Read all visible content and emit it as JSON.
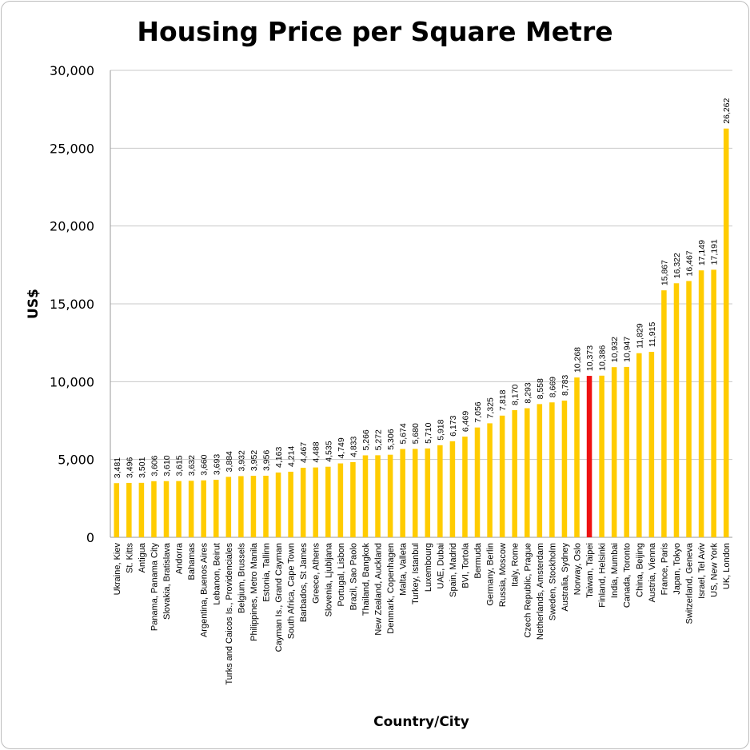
{
  "chart_data": {
    "type": "bar",
    "title": "Housing Price per Square Metre",
    "xlabel": "Country/City",
    "ylabel": "US$",
    "ylim": [
      0,
      30000
    ],
    "yticks": [
      0,
      5000,
      10000,
      15000,
      20000,
      25000,
      30000
    ],
    "ytick_labels": [
      "0",
      "5,000",
      "10,000",
      "15,000",
      "20,000",
      "25,000",
      "30,000"
    ],
    "grid": true,
    "bar_color": "#FFCC00",
    "highlight_color": "#EE1111",
    "highlight": "Taiwan, Taipei",
    "categories": [
      "Ukraine, Kiev",
      "St. Kitts",
      "Antigua",
      "Panama, Panama City",
      "Slovakia, Bratislava",
      "Andorra",
      "Bahamas",
      "Argentina, Buenos Aires",
      "Lebanon, Beirut",
      "Turks and Caicos Is., Providenciales",
      "Belgium, Brussels",
      "Philippines, Metro Manila",
      "Estonia, Tallinn",
      "Cayman Is., Grand Cayman",
      "South Africa, Cape Town",
      "Barbados, St James",
      "Greece, Athens",
      "Slovenia, Ljubljana",
      "Portugal, Lisbon",
      "Brazil, Sao Paolo",
      "Thailand, Bangkok",
      "New Zealand, Auckland",
      "Denmark, Copenhagen",
      "Malta, Valleta",
      "Turkey, Istanbul",
      "Luxembourg",
      "UAE, Dubai",
      "Spain, Madrid",
      "BVI, Tortola",
      "Bermuda",
      "Germany, Berlin",
      "Russia, Moscow",
      "Italy, Rome",
      "Czech Republic, Prague",
      "Netherlands, Amsterdam",
      "Sweden, Stockholm",
      "Australia, Sydney",
      "Norway, Oslo",
      "Taiwan, Taipei",
      "Finland, Helsinki",
      "India, Mumbai",
      "Canada, Toronto",
      "China, Beijing",
      "Austria, Vienna",
      "France, Paris",
      "Japan, Tokyo",
      "Switzerland, Geneva",
      "Israel, Tel Aviv",
      "US, New York",
      "UK, London"
    ],
    "values": [
      3481,
      3496,
      3501,
      3606,
      3610,
      3615,
      3632,
      3660,
      3693,
      3884,
      3932,
      3952,
      3956,
      4163,
      4214,
      4467,
      4488,
      4535,
      4749,
      4833,
      5266,
      5272,
      5306,
      5674,
      5680,
      5710,
      5918,
      6173,
      6469,
      7056,
      7325,
      7818,
      8170,
      8293,
      8558,
      8669,
      8783,
      10268,
      10373,
      10386,
      10932,
      10947,
      11829,
      11915,
      15867,
      16322,
      16467,
      17149,
      17191,
      26262
    ],
    "value_labels": [
      "3,481",
      "3,496",
      "3,501",
      "3,606",
      "3,610",
      "3,615",
      "3,632",
      "3,660",
      "3,693",
      "3,884",
      "3,932",
      "3,952",
      "3,956",
      "4,163",
      "4,214",
      "4,467",
      "4,488",
      "4,535",
      "4,749",
      "4,833",
      "5,266",
      "5,272",
      "5,306",
      "5,674",
      "5,680",
      "5,710",
      "5,918",
      "6,173",
      "6,469",
      "7,056",
      "7,325",
      "7,818",
      "8,170",
      "8,293",
      "8,558",
      "8,669",
      "8,783",
      "10,268",
      "10,373",
      "10,386",
      "10,932",
      "10,947",
      "11,829",
      "11,915",
      "15,867",
      "16,322",
      "16,467",
      "17,149",
      "17,191",
      "26,262"
    ]
  }
}
